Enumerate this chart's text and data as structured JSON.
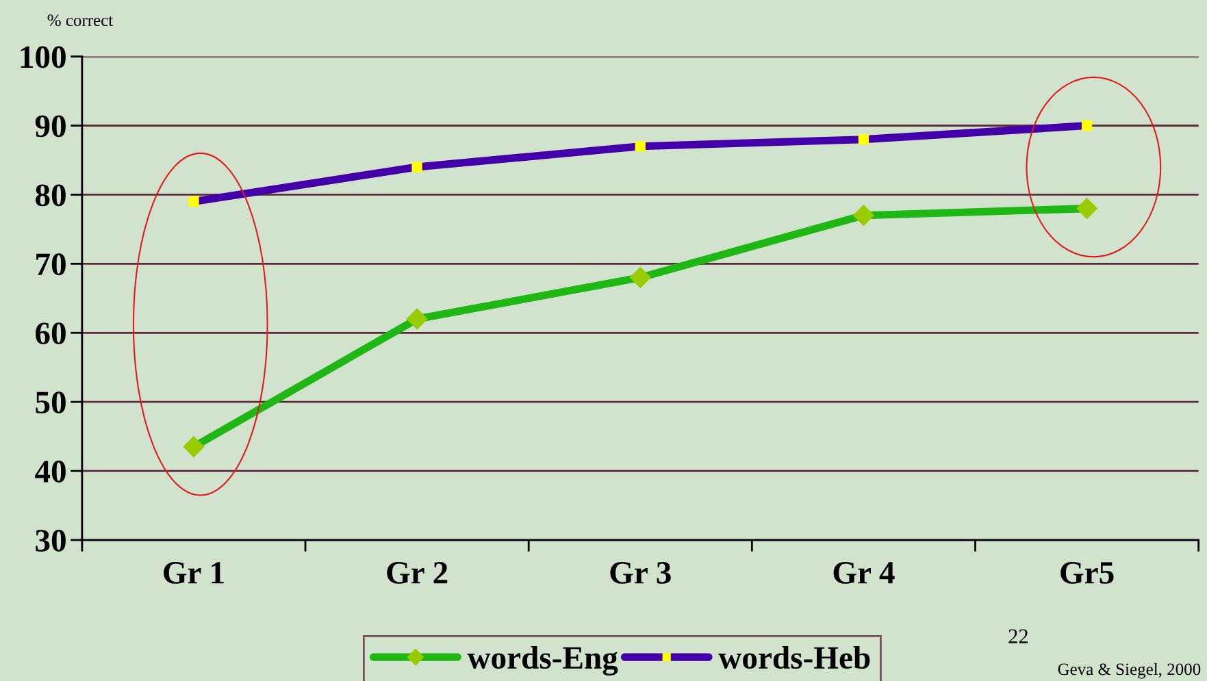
{
  "chart_data": {
    "type": "line",
    "ylabel": "% correct",
    "categories": [
      "Gr 1",
      "Gr 2",
      "Gr 3",
      "Gr 4",
      "Gr5"
    ],
    "series": [
      {
        "name": "words-Eng",
        "color": "#1fb714",
        "marker": "diamond",
        "colors": [
          "#99cc00",
          "#99cc00",
          "#99cc00",
          "#99cc00",
          "#99cc00"
        ],
        "values": [
          43.5,
          62,
          68,
          77,
          78
        ]
      },
      {
        "name": "words-Heb",
        "color": "#4400a8",
        "marker": "square",
        "colors": [
          "#ffff00",
          "#ffff00",
          "#ffff00",
          "#ffff00",
          "#ffff00"
        ],
        "values": [
          79,
          84,
          87,
          88,
          90
        ]
      }
    ],
    "ylim": [
      30,
      100
    ],
    "yticks": [
      30,
      40,
      50,
      60,
      70,
      80,
      90,
      100
    ],
    "grid": "y",
    "legend": "bottom",
    "annotations": [
      "22",
      "Geva & Siegel, 2000"
    ]
  }
}
